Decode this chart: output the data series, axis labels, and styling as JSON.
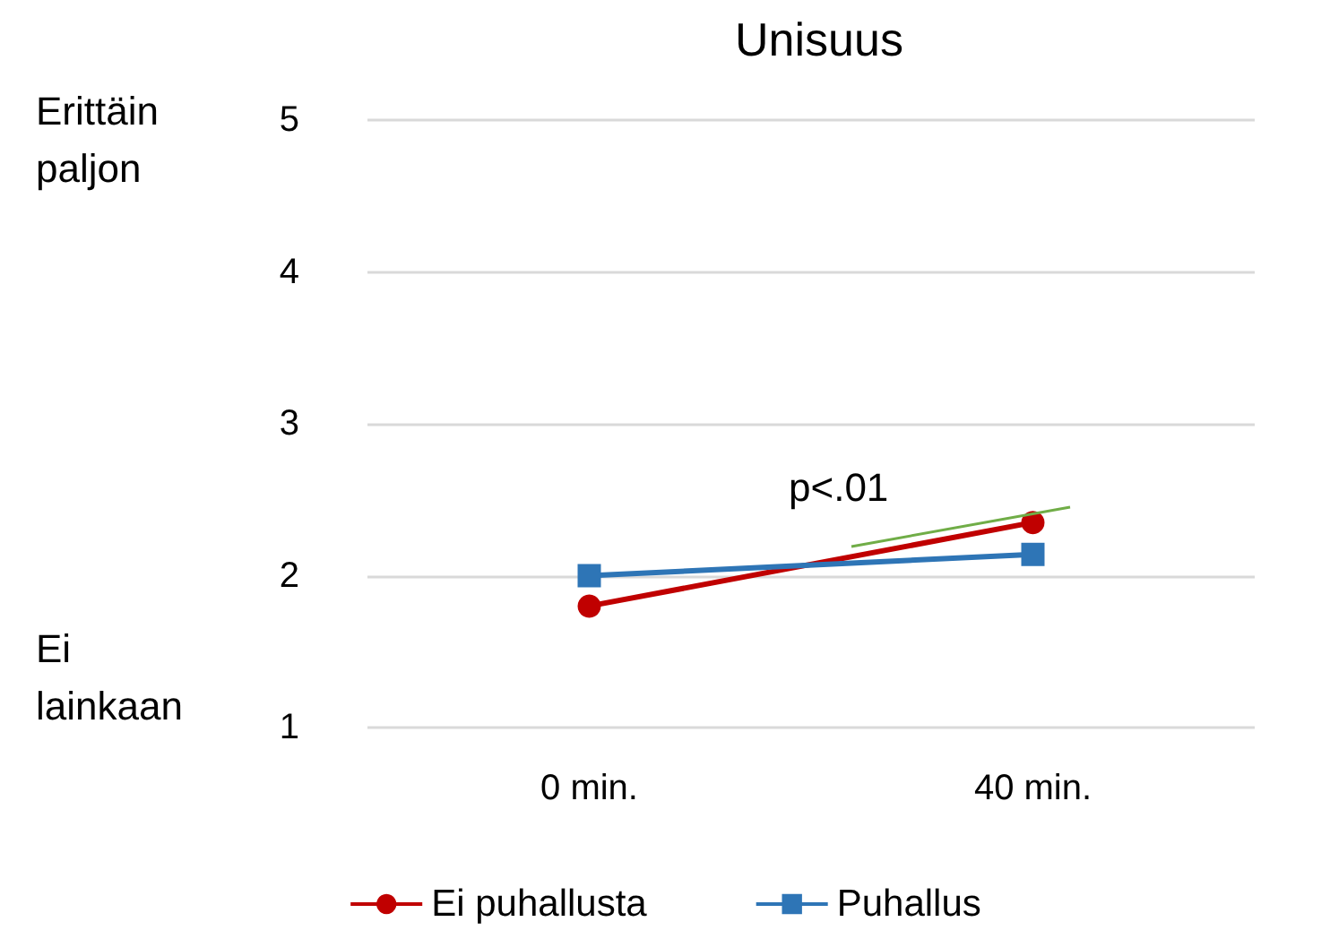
{
  "chart_data": {
    "type": "line",
    "title": "Unisuus",
    "categories": [
      "0 min.",
      "40 min."
    ],
    "series": [
      {
        "name": "Ei puhallusta",
        "color": "#c00000",
        "values": [
          1.8,
          2.35
        ],
        "marker": "circle"
      },
      {
        "name": "Puhallus",
        "color": "#2e75b6",
        "values": [
          2.0,
          2.14
        ],
        "marker": "square"
      }
    ],
    "ylim": [
      1,
      5
    ],
    "yticks": [
      1,
      2,
      3,
      4,
      5
    ],
    "grid": "y",
    "legend": "bottom",
    "annotations": [
      "p<.01",
      "Erittäin paljon",
      "Ei lainkaan"
    ]
  }
}
